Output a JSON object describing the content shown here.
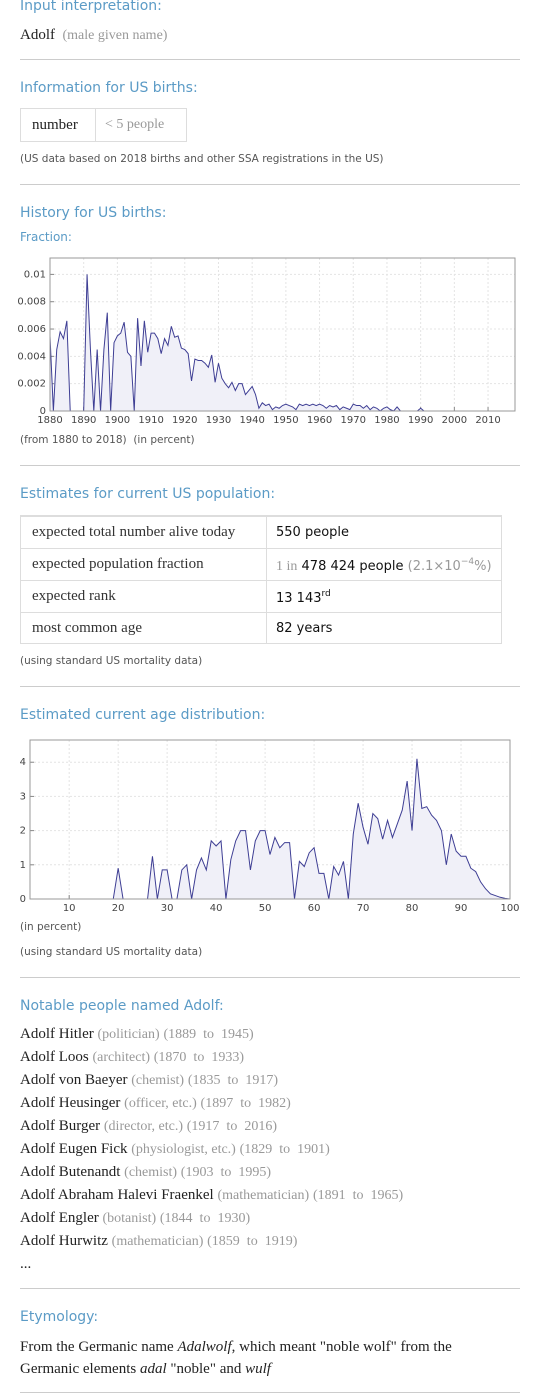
{
  "input": {
    "heading": "Input interpretation:",
    "name": "Adolf",
    "note": "(male given name)"
  },
  "us_births": {
    "heading": "Information for US births:",
    "table": {
      "rows": [
        [
          "number",
          "< 5 people"
        ]
      ]
    },
    "note": "(US data based on 2018 births and other SSA registrations in the US)"
  },
  "history": {
    "heading": "History for US births:",
    "subheading": "Fraction:",
    "notes": [
      "(from 1880 to 2018)",
      "(in percent)"
    ]
  },
  "estimates": {
    "heading": "Estimates for current US population:",
    "rows": [
      {
        "label": "expected total number alive today",
        "value": "550 people"
      },
      {
        "label": "expected population fraction",
        "prefix": "1 in",
        "value": "478 424 people",
        "extra": "(2.1×10",
        "extra_exp": "−4",
        "extra_tail": "%)"
      },
      {
        "label": "expected rank",
        "value": "13 143",
        "sup": "rd"
      },
      {
        "label": "most common age",
        "value": "82 years"
      }
    ],
    "note": "(using standard US mortality data)"
  },
  "age": {
    "heading": "Estimated current age distribution:",
    "notes": [
      "(in percent)",
      "(using standard US mortality data)"
    ]
  },
  "notable": {
    "heading": "Notable people named Adolf:",
    "people": [
      {
        "name": "Adolf Hitler",
        "role": "(politician)",
        "years": "(1889  to  1945)"
      },
      {
        "name": "Adolf Loos",
        "role": "(architect)",
        "years": "(1870  to  1933)"
      },
      {
        "name": "Adolf von Baeyer",
        "role": "(chemist)",
        "years": "(1835  to  1917)"
      },
      {
        "name": "Adolf Heusinger",
        "role": "(officer, etc.)",
        "years": "(1897  to  1982)"
      },
      {
        "name": "Adolf Burger",
        "role": "(director, etc.)",
        "years": "(1917  to  2016)"
      },
      {
        "name": "Adolf Eugen Fick",
        "role": "(physiologist, etc.)",
        "years": "(1829  to  1901)"
      },
      {
        "name": "Adolf Butenandt",
        "role": "(chemist)",
        "years": "(1903  to  1995)"
      },
      {
        "name": "Adolf Abraham Halevi Fraenkel",
        "role": "(mathematician)",
        "years": "(1891  to  1965)"
      },
      {
        "name": "Adolf Engler",
        "role": "(botanist)",
        "years": "(1844  to  1930)"
      },
      {
        "name": "Adolf Hurwitz",
        "role": "(mathematician)",
        "years": "(1859  to  1919)"
      }
    ],
    "more": "..."
  },
  "etymology": {
    "heading": "Etymology:",
    "segments": [
      {
        "text": "From the Germanic name ",
        "italic": false
      },
      {
        "text": "Adalwolf",
        "italic": true
      },
      {
        "text": ", which meant \"noble wolf\" from the Germanic elements ",
        "italic": false
      },
      {
        "text": "adal",
        "italic": true
      },
      {
        "text": " \"noble\" and ",
        "italic": false
      },
      {
        "text": "wulf",
        "italic": true
      }
    ]
  },
  "chart_data": [
    {
      "type": "line",
      "color": "#3e3e94",
      "area_color": "#f0f0f8",
      "grid": true,
      "xlim": [
        1880,
        2018
      ],
      "ylim": [
        0,
        0.0112
      ],
      "xticks": [
        1880,
        1890,
        1900,
        1910,
        1920,
        1930,
        1940,
        1950,
        1960,
        1970,
        1980,
        1990,
        2000,
        2010
      ],
      "yticks": [
        0,
        0.002,
        0.004,
        0.006,
        0.008,
        0.01
      ],
      "x": [
        1880,
        1881,
        1882,
        1883,
        1884,
        1885,
        1886,
        1887,
        1888,
        1889,
        1890,
        1891,
        1892,
        1893,
        1894,
        1895,
        1896,
        1897,
        1898,
        1899,
        1900,
        1901,
        1902,
        1903,
        1904,
        1905,
        1906,
        1907,
        1908,
        1909,
        1910,
        1911,
        1912,
        1913,
        1914,
        1915,
        1916,
        1917,
        1918,
        1919,
        1920,
        1921,
        1922,
        1923,
        1924,
        1925,
        1926,
        1927,
        1928,
        1929,
        1930,
        1931,
        1932,
        1933,
        1934,
        1935,
        1936,
        1937,
        1938,
        1939,
        1940,
        1941,
        1942,
        1943,
        1944,
        1945,
        1946,
        1947,
        1948,
        1949,
        1950,
        1951,
        1952,
        1953,
        1954,
        1955,
        1956,
        1957,
        1958,
        1959,
        1960,
        1961,
        1962,
        1963,
        1964,
        1965,
        1966,
        1967,
        1968,
        1969,
        1970,
        1971,
        1972,
        1973,
        1974,
        1975,
        1976,
        1977,
        1978,
        1979,
        1980,
        1981,
        1982,
        1983,
        1984,
        1985,
        1986,
        1987,
        1988,
        1989,
        1990,
        1991,
        1992,
        1993,
        1994,
        1995,
        1996,
        1997,
        1998,
        1999,
        2000,
        2001,
        2002,
        2003,
        2004,
        2005,
        2006,
        2007,
        2008,
        2009,
        2010,
        2011,
        2012,
        2013,
        2014,
        2015,
        2016,
        2017,
        2018
      ],
      "values": [
        0.0055,
        0,
        0.0045,
        0.0058,
        0.0053,
        0.0066,
        0,
        0,
        0,
        0,
        0,
        0.01,
        0.0045,
        0,
        0.0045,
        0,
        0.0045,
        0.0072,
        0,
        0.005,
        0.0055,
        0.0057,
        0.0065,
        0.0043,
        0.004,
        0,
        0.0068,
        0.0033,
        0.0066,
        0.0043,
        0.0057,
        0.0057,
        0.0053,
        0.0042,
        0.0053,
        0.0048,
        0.0062,
        0.0054,
        0.0055,
        0.0046,
        0.0045,
        0.0042,
        0.0022,
        0.0038,
        0.0037,
        0.0037,
        0.0035,
        0.0032,
        0.0041,
        0.0021,
        0.0035,
        0.0024,
        0.002,
        0.0017,
        0.0021,
        0.0015,
        0.002,
        0.002,
        0.0012,
        0.0015,
        0.0018,
        0.0012,
        0.0002,
        0.0006,
        0.0004,
        0.0005,
        0.0001,
        0.0003,
        0.0002,
        0.0004,
        0.0005,
        0.0004,
        0.0003,
        0.0001,
        0.0005,
        0.0004,
        0.0005,
        0.0004,
        0.0005,
        0.0004,
        0.0005,
        0.0004,
        0.0002,
        0.0004,
        0.0003,
        0.0004,
        0.0001,
        0.0003,
        0.0002,
        0.0001,
        0.0005,
        0.0004,
        0.0004,
        0.0002,
        0.0004,
        0.0001,
        0.0003,
        0.0002,
        0,
        0.0002,
        0.0003,
        0.0001,
        0,
        0.0003,
        0,
        0,
        0,
        0,
        0,
        0,
        0.0002,
        0,
        0,
        0,
        0,
        0,
        0,
        0,
        0,
        0,
        0,
        0,
        0,
        0,
        0,
        0,
        0,
        0,
        0,
        0,
        0,
        0,
        0,
        0,
        0,
        0,
        0,
        0,
        0
      ]
    },
    {
      "type": "line",
      "color": "#3e3e94",
      "area_color": "#f0f0f8",
      "grid": true,
      "xlim": [
        2,
        100
      ],
      "ylim": [
        0,
        4.65
      ],
      "xticks": [
        10,
        20,
        30,
        40,
        50,
        60,
        70,
        80,
        90,
        100
      ],
      "yticks": [
        0,
        1,
        2,
        3,
        4
      ],
      "x": [
        2,
        3,
        4,
        5,
        6,
        7,
        8,
        9,
        10,
        11,
        12,
        13,
        14,
        15,
        16,
        17,
        18,
        19,
        20,
        21,
        22,
        23,
        24,
        25,
        26,
        27,
        28,
        29,
        30,
        31,
        32,
        33,
        34,
        35,
        36,
        37,
        38,
        39,
        40,
        41,
        42,
        43,
        44,
        45,
        46,
        47,
        48,
        49,
        50,
        51,
        52,
        53,
        54,
        55,
        56,
        57,
        58,
        59,
        60,
        61,
        62,
        63,
        64,
        65,
        66,
        67,
        68,
        69,
        70,
        71,
        72,
        73,
        74,
        75,
        76,
        77,
        78,
        79,
        80,
        81,
        82,
        83,
        84,
        85,
        86,
        87,
        88,
        89,
        90,
        91,
        92,
        93,
        94,
        95,
        96,
        97,
        98,
        99,
        100
      ],
      "values": [
        0,
        0,
        0,
        0,
        0,
        0,
        0,
        0,
        0,
        0,
        0,
        0,
        0,
        0,
        0,
        0,
        0,
        0,
        0.9,
        0,
        0,
        0,
        0,
        0,
        0,
        1.25,
        0,
        0.85,
        0.85,
        0,
        0,
        0.85,
        1.0,
        0,
        0.85,
        1.2,
        0.85,
        1.7,
        1.55,
        1.7,
        0,
        1.15,
        1.7,
        2.0,
        2.0,
        0.85,
        1.7,
        2.0,
        2.0,
        1.3,
        1.8,
        1.5,
        1.65,
        1.65,
        0,
        1.1,
        0.95,
        1.35,
        1.5,
        0.75,
        0.75,
        0,
        0.95,
        0.7,
        1.1,
        0,
        1.9,
        2.8,
        2.1,
        1.6,
        2.5,
        2.35,
        1.75,
        2.3,
        1.8,
        2.2,
        2.6,
        3.45,
        2.0,
        4.1,
        2.65,
        2.7,
        2.45,
        2.3,
        2.0,
        1.0,
        1.9,
        1.4,
        1.25,
        1.25,
        0.9,
        0.8,
        0.5,
        0.3,
        0.15,
        0.1,
        0.05,
        0.02,
        0
      ]
    }
  ]
}
